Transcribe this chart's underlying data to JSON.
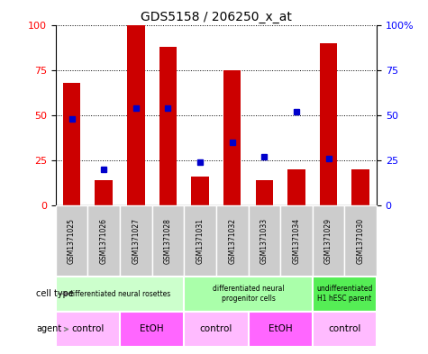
{
  "title": "GDS5158 / 206250_x_at",
  "samples": [
    "GSM1371025",
    "GSM1371026",
    "GSM1371027",
    "GSM1371028",
    "GSM1371031",
    "GSM1371032",
    "GSM1371033",
    "GSM1371034",
    "GSM1371029",
    "GSM1371030"
  ],
  "counts": [
    68,
    14,
    100,
    88,
    16,
    75,
    14,
    20,
    90,
    20
  ],
  "percentiles": [
    48,
    20,
    54,
    54,
    24,
    35,
    27,
    52,
    26,
    null
  ],
  "cell_types": [
    {
      "label": "differentiated neural rosettes",
      "start": 0,
      "end": 4,
      "color": "#ccffcc"
    },
    {
      "label": "differentiated neural\nprogenitor cells",
      "start": 4,
      "end": 8,
      "color": "#aaffaa"
    },
    {
      "label": "undifferentiated\nH1 hESC parent",
      "start": 8,
      "end": 10,
      "color": "#55ee55"
    }
  ],
  "agents": [
    {
      "label": "control",
      "start": 0,
      "end": 2,
      "color": "#ffbbff"
    },
    {
      "label": "EtOH",
      "start": 2,
      "end": 4,
      "color": "#ff66ff"
    },
    {
      "label": "control",
      "start": 4,
      "end": 6,
      "color": "#ffbbff"
    },
    {
      "label": "EtOH",
      "start": 6,
      "end": 8,
      "color": "#ff66ff"
    },
    {
      "label": "control",
      "start": 8,
      "end": 10,
      "color": "#ffbbff"
    }
  ],
  "bar_color": "#cc0000",
  "dot_color": "#0000cc",
  "ylim": [
    0,
    100
  ],
  "yticks": [
    0,
    25,
    50,
    75,
    100
  ],
  "sample_box_color": "#cccccc",
  "background_color": "#ffffff"
}
